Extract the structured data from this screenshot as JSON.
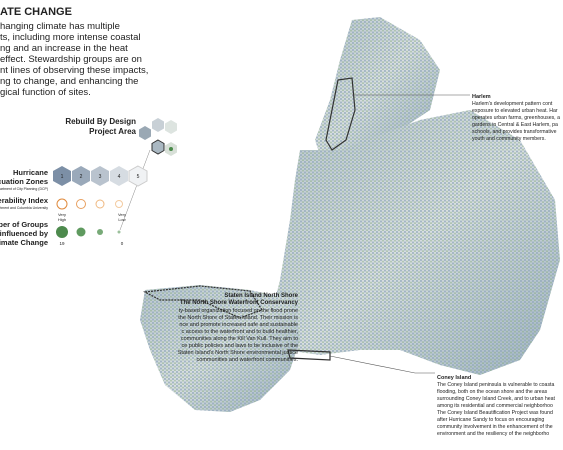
{
  "header": {
    "title": "ATE CHANGE",
    "lines": [
      "hanging climate has multiple",
      "ts, including more intense coastal",
      "ng and an increase in the heat",
      "effect. Stewardship groups are on",
      "nt lines of observing these impacts,",
      "ng to change, and enhancing the",
      "gical function of sites."
    ]
  },
  "legend": {
    "rebuild": [
      "Rebuild By Design",
      "Project Area"
    ],
    "hurricane": [
      "Hurricane",
      "acuation Zones"
    ],
    "hurricane_source": "Department of City Planning (DCP)",
    "zones": [
      "1",
      "2",
      "3",
      "4",
      "5"
    ],
    "vulnerability": "nerability Index",
    "vulnerability_source": "Department and Columbia University",
    "very_high": [
      "Very",
      "High"
    ],
    "very_low": [
      "Very",
      "Low"
    ],
    "groups": [
      "mber of Groups",
      "influenced by",
      "Climate Change"
    ],
    "groups_max": "19",
    "groups_min": "0"
  },
  "staten": {
    "title": "Staten Island North Shore",
    "subtitle": "The North Shore Waterfront Conservancy",
    "lines": [
      "ty-based organization focused on the flood prone",
      "the North Shore of Staten Island. Their mission is",
      "nce and promote increased safe and sustainable",
      "c access to the waterfront and to build healthier,",
      "communities along the Kill Van Kull. They aim to",
      "ce public policies and laws to be inclusive of the",
      "Staten Island's North Shore environmental justice",
      "communities and waterfront communities."
    ]
  },
  "harlem": {
    "title": "Harlem",
    "lines": [
      "Harlem's development pattern cont",
      "exposure to elevated urban heat. Har",
      "operates urban farms, greenhouses, a",
      "gardens in Central & East Harlem, pa",
      "schools, and provides transformative",
      "youth and community members."
    ]
  },
  "coney": {
    "title": "Coney Island",
    "lines": [
      "The Coney Island peninsula is vulnerable to coasta",
      "flooding, both on the ocean shore and the areas",
      "surrounding Coney Island Creek, and to urban heat",
      "among its residential and commercial neighborhoo",
      "The Coney Island Beautification Project was found",
      "after Hurricane Sandy to focus on encouraging",
      "community involvement in the enhancement of the",
      "environment and the resiliency of the neighborho"
    ]
  }
}
